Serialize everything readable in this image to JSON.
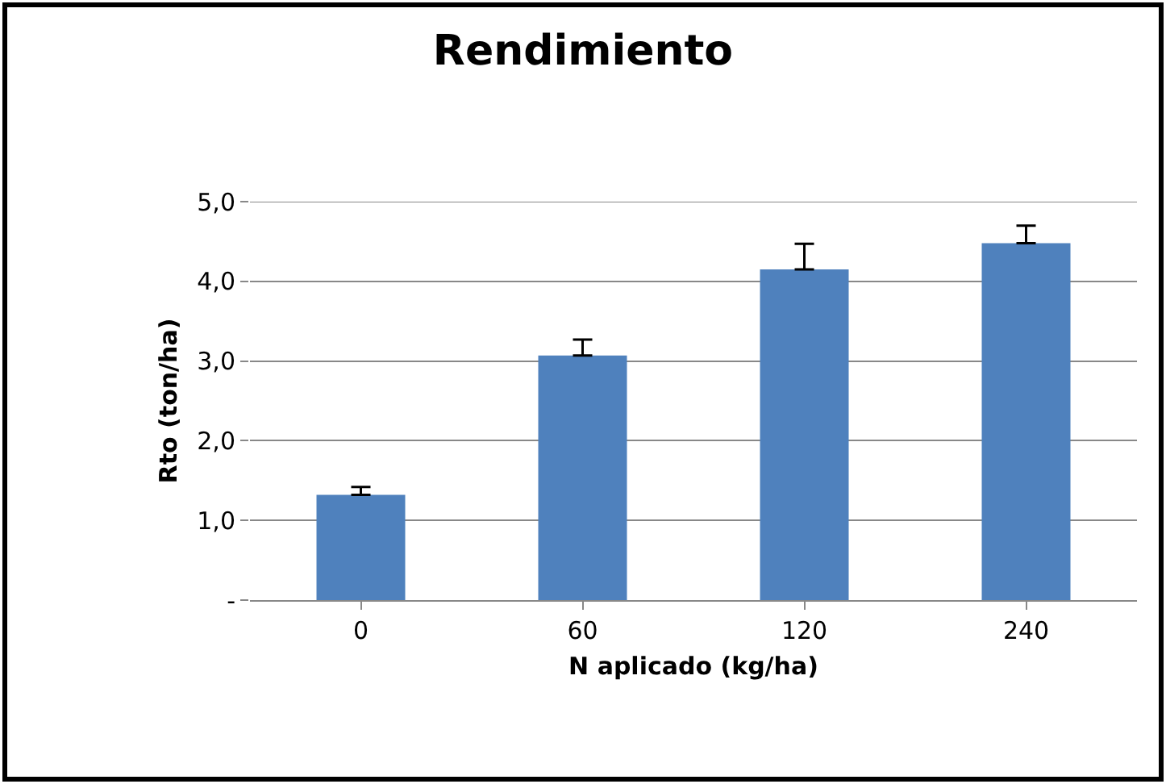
{
  "chart_data": {
    "type": "bar",
    "title": "Rendimiento",
    "xlabel": "N aplicado (kg/ha)",
    "ylabel": "Rto (ton/ha)",
    "categories": [
      "0",
      "60",
      "120",
      "240"
    ],
    "values": [
      1.32,
      3.07,
      4.15,
      4.48
    ],
    "errors": [
      [
        1.32,
        1.42
      ],
      [
        3.07,
        3.27
      ],
      [
        4.15,
        4.47
      ],
      [
        4.48,
        4.7
      ]
    ],
    "color": "#4f81bd",
    "ylim": [
      0,
      5
    ],
    "yticks": [
      {
        "value": 0,
        "label": "-"
      },
      {
        "value": 1,
        "label": "1,0"
      },
      {
        "value": 2,
        "label": "2,0"
      },
      {
        "value": 3,
        "label": "3,0"
      },
      {
        "value": 4,
        "label": "4,0"
      },
      {
        "value": 5,
        "label": "5,0"
      }
    ],
    "grid": "y"
  }
}
